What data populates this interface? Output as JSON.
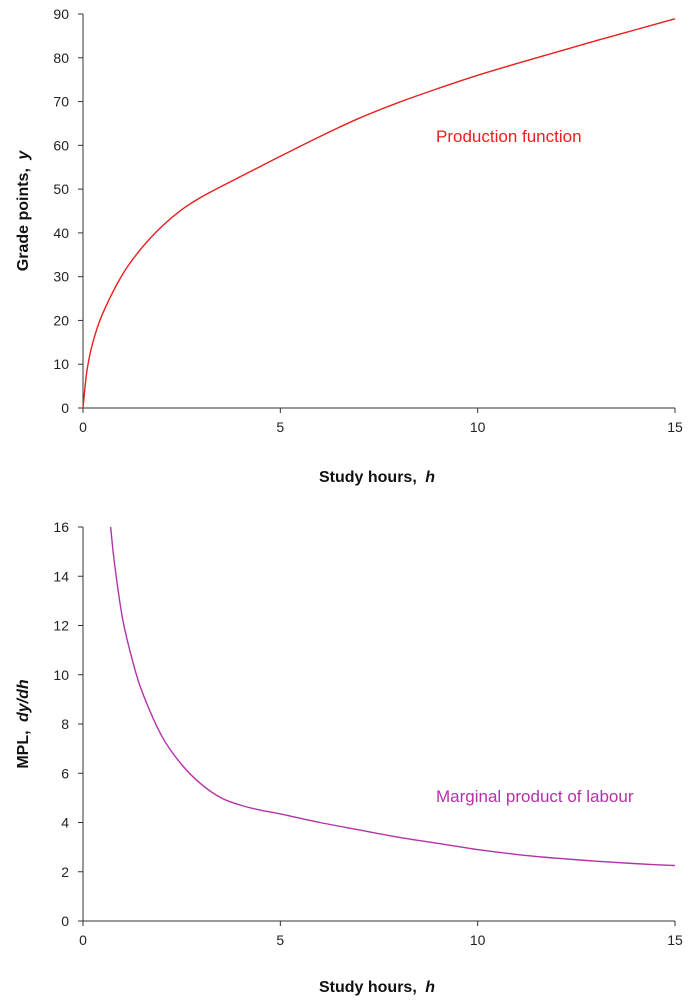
{
  "chart_data": [
    {
      "type": "line",
      "xlabel": "Study hours,",
      "xlabel_var": "h",
      "ylabel": "Grade points,",
      "ylabel_var": "y",
      "xlim": [
        0,
        15
      ],
      "ylim": [
        0,
        90
      ],
      "x_ticks": [
        0,
        5,
        10,
        15
      ],
      "y_ticks": [
        0,
        10,
        20,
        30,
        40,
        50,
        60,
        70,
        80,
        90
      ],
      "grid": false,
      "series": [
        {
          "name": "Production function",
          "color": "#e8201e",
          "x": [
            0,
            0.1,
            0.25,
            0.5,
            1,
            1.5,
            2,
            2.5,
            3,
            3.5,
            4,
            4.5,
            5,
            6,
            7,
            8,
            9,
            10,
            11,
            12,
            13,
            14,
            15
          ],
          "y": [
            0,
            8.5,
            15,
            21.6,
            30.5,
            36.7,
            41.5,
            45.3,
            48.2,
            50.6,
            52.9,
            55.2,
            57.5,
            62,
            66.2,
            69.8,
            73,
            76,
            78.7,
            81.3,
            83.9,
            86.4,
            88.9
          ]
        }
      ]
    },
    {
      "type": "line",
      "xlabel": "Study hours,",
      "xlabel_var": "h",
      "ylabel": "MPL,",
      "ylabel_var": "dy/dh",
      "xlim": [
        0,
        15
      ],
      "ylim": [
        0,
        16
      ],
      "x_ticks": [
        0,
        5,
        10,
        15
      ],
      "y_ticks": [
        0,
        2,
        4,
        6,
        8,
        10,
        12,
        14,
        16
      ],
      "grid": false,
      "series": [
        {
          "name": "Marginal product of labour",
          "color": "#b531a8",
          "x": [
            0.7,
            0.8,
            1,
            1.25,
            1.5,
            2,
            2.5,
            3,
            3.5,
            4,
            4.5,
            5,
            6,
            7,
            8,
            9,
            10,
            11,
            12,
            13,
            14,
            15
          ],
          "y": [
            16,
            14.5,
            12.3,
            10.6,
            9.3,
            7.5,
            6.35,
            5.55,
            5.0,
            4.7,
            4.5,
            4.35,
            4.0,
            3.7,
            3.4,
            3.15,
            2.9,
            2.7,
            2.55,
            2.43,
            2.33,
            2.25
          ]
        }
      ]
    }
  ]
}
